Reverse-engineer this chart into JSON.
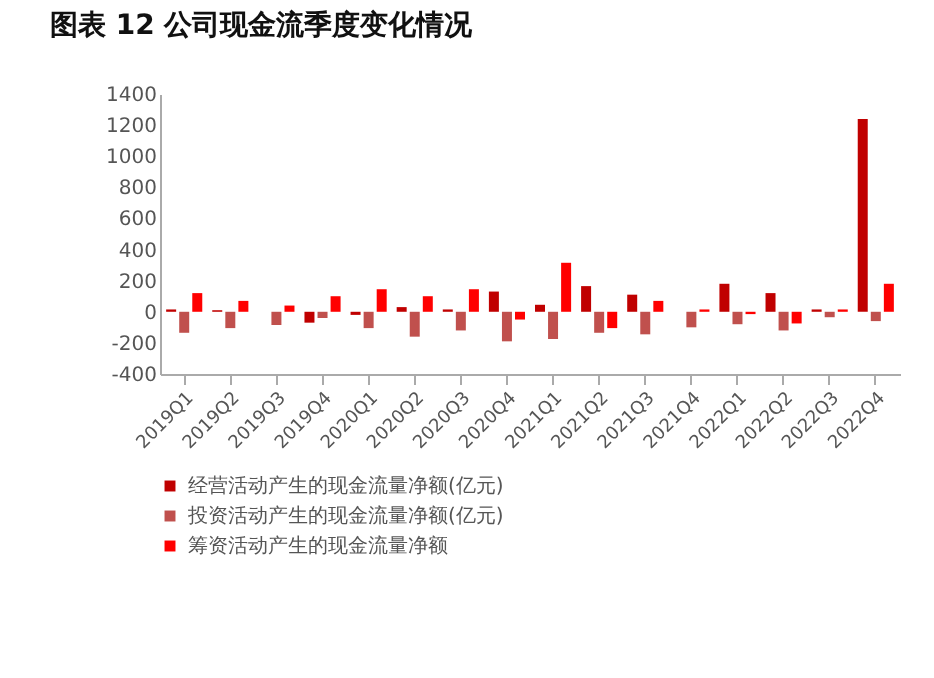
{
  "chart_data": {
    "type": "bar",
    "title": "图表 12 公司现金流季度变化情况",
    "categories": [
      "2019Q1",
      "2019Q2",
      "2019Q3",
      "2019Q4",
      "2020Q1",
      "2020Q2",
      "2020Q3",
      "2020Q4",
      "2021Q1",
      "2021Q2",
      "2021Q3",
      "2021Q4",
      "2022Q1",
      "2022Q2",
      "2022Q3",
      "2022Q4"
    ],
    "series": [
      {
        "name": "经营活动产生的现金流量净额(亿元)",
        "color": "#c00000",
        "values": [
          15,
          10,
          0,
          -70,
          -20,
          30,
          15,
          130,
          45,
          165,
          110,
          0,
          180,
          120,
          15,
          1240
        ]
      },
      {
        "name": "投资活动产生的现金流量净额(亿元)",
        "color": "#c0504d",
        "values": [
          -135,
          -105,
          -85,
          -40,
          -105,
          -160,
          -120,
          -190,
          -175,
          -135,
          -145,
          -100,
          -80,
          -120,
          -35,
          -60
        ]
      },
      {
        "name": "筹资活动产生的现金流量净额",
        "color": "#ff0000",
        "values": [
          120,
          70,
          40,
          100,
          145,
          100,
          145,
          -50,
          315,
          -105,
          70,
          15,
          -15,
          -75,
          15,
          180
        ]
      }
    ],
    "ylim": [
      -400,
      1400
    ],
    "yticks": [
      -400,
      -200,
      0,
      200,
      400,
      600,
      800,
      1000,
      1200,
      1400
    ],
    "legend": "bottom"
  }
}
